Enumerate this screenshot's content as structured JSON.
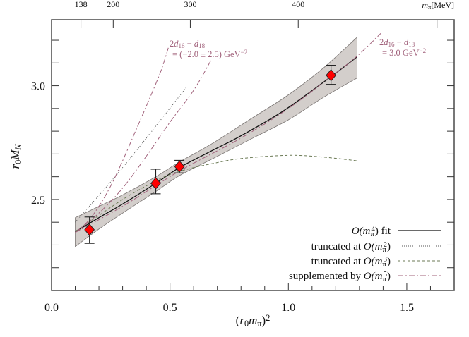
{
  "chart_data": {
    "type": "scatter",
    "xlabel": [
      {
        "t": "("
      },
      {
        "t": "r",
        "i": true
      },
      {
        "t": "0",
        "sub": true
      },
      {
        "t": "m",
        "i": true
      },
      {
        "t": "π",
        "sub": true
      },
      {
        "t": ")"
      },
      {
        "t": "2",
        "sup": true
      }
    ],
    "ylabel": [
      {
        "t": "r",
        "i": true
      },
      {
        "t": "0",
        "sub": true
      },
      {
        "t": "M",
        "i": true
      },
      {
        "t": "N",
        "sub": true,
        "i": true
      }
    ],
    "xlim": [
      0.0,
      1.7
    ],
    "ylim": [
      2.1,
      3.29
    ],
    "x_ticks": [
      {
        "value": 0.0,
        "label": "0.0"
      },
      {
        "value": 0.5,
        "label": "0.5"
      },
      {
        "value": 1.0,
        "label": "1.0"
      },
      {
        "value": 1.5,
        "label": "1.5"
      }
    ],
    "y_ticks": [
      {
        "value": 2.5,
        "label": "2.5"
      },
      {
        "value": 3.0,
        "label": "3.0"
      }
    ],
    "top_axis": {
      "label": [
        {
          "t": "m",
          "i": true
        },
        {
          "t": "π",
          "sub": true
        },
        {
          "t": "[MeV]"
        }
      ],
      "ticks": [
        {
          "value": 138,
          "label": "138"
        },
        {
          "value": 200,
          "label": "200"
        },
        {
          "value": 300,
          "label": "300"
        },
        {
          "value": 400,
          "label": "400"
        },
        {
          "value": 500,
          "label": ""
        }
      ]
    },
    "grid": false,
    "points": [
      {
        "x": 0.16,
        "y": 2.367,
        "err_low": 2.307,
        "err_high": 2.423
      },
      {
        "x": 0.44,
        "y": 2.571,
        "err_low": 2.525,
        "err_high": 2.633
      },
      {
        "x": 0.54,
        "y": 2.645,
        "err_low": 2.617,
        "err_high": 2.672
      },
      {
        "x": 1.18,
        "y": 3.046,
        "err_low": 3.006,
        "err_high": 3.09
      }
    ],
    "marker_color": "#ff0000",
    "band": {
      "color": "#d3cecb",
      "upper": [
        [
          0.1,
          2.42
        ],
        [
          0.2,
          2.47
        ],
        [
          0.3,
          2.52
        ],
        [
          0.44,
          2.6
        ],
        [
          0.54,
          2.665
        ],
        [
          0.68,
          2.747
        ],
        [
          0.85,
          2.86
        ],
        [
          1.0,
          2.96
        ],
        [
          1.15,
          3.08
        ],
        [
          1.29,
          3.213
        ]
      ],
      "lower": [
        [
          0.1,
          2.293
        ],
        [
          0.2,
          2.37
        ],
        [
          0.3,
          2.44
        ],
        [
          0.44,
          2.535
        ],
        [
          0.54,
          2.605
        ],
        [
          0.68,
          2.679
        ],
        [
          0.85,
          2.77
        ],
        [
          1.0,
          2.85
        ],
        [
          1.15,
          2.95
        ],
        [
          1.29,
          3.034
        ]
      ]
    },
    "series": [
      {
        "name": [
          {
            "t": "O(m",
            "i": true
          },
          {
            "t": "π",
            "sub": true
          },
          {
            "t": "4",
            "sup": true
          },
          {
            "t": ")"
          },
          {
            "t": " fit"
          }
        ],
        "style": "solid",
        "color": "#111111",
        "x": [
          0.1,
          0.2,
          0.3,
          0.44,
          0.54,
          0.68,
          0.8,
          0.98,
          1.18,
          1.29
        ],
        "y": [
          2.358,
          2.42,
          2.48,
          2.571,
          2.64,
          2.716,
          2.78,
          2.89,
          3.04,
          3.127
        ]
      },
      {
        "name": [
          {
            "t": "truncated at "
          },
          {
            "t": "O(m",
            "i": true
          },
          {
            "t": "π",
            "sub": true
          },
          {
            "t": "2",
            "sup": true
          },
          {
            "t": ")"
          }
        ],
        "style": "dotted",
        "color": "#555555",
        "x": [
          0.1,
          0.3,
          0.567
        ],
        "y": [
          2.4,
          2.64,
          2.99
        ]
      },
      {
        "name": [
          {
            "t": "truncated at "
          },
          {
            "t": "O(m",
            "i": true
          },
          {
            "t": "π",
            "sub": true
          },
          {
            "t": "3",
            "sup": true
          },
          {
            "t": ")"
          }
        ],
        "style": "dashed",
        "color": "#6b7a55",
        "x": [
          0.1,
          0.2,
          0.3,
          0.4,
          0.5,
          0.6,
          0.68,
          0.8,
          1.0,
          1.15,
          1.29
        ],
        "y": [
          2.36,
          2.43,
          2.5,
          2.56,
          2.61,
          2.64,
          2.658,
          2.68,
          2.694,
          2.686,
          2.67
        ]
      },
      {
        "name": [
          {
            "t": "supplemented by "
          },
          {
            "t": "O(m",
            "i": true
          },
          {
            "t": "π",
            "sub": true
          },
          {
            "t": "5",
            "sup": true
          },
          {
            "t": ")"
          }
        ],
        "style": "dashdot",
        "color": "#a0607a",
        "x": [
          0.1,
          0.3,
          0.54,
          0.8,
          1.0,
          1.18,
          1.29,
          1.39
        ],
        "y": [
          2.355,
          2.47,
          2.625,
          2.77,
          2.9,
          3.04,
          3.13,
          3.23
        ]
      },
      {
        "style": "dashdot",
        "color": "#a0607a",
        "x": [
          0.1,
          0.15,
          0.2,
          0.25,
          0.3,
          0.35,
          0.4,
          0.46,
          0.494
        ],
        "y": [
          2.355,
          2.4,
          2.47,
          2.56,
          2.67,
          2.79,
          2.91,
          3.06,
          3.17
        ]
      },
      {
        "style": "dashdot",
        "color": "#a0607a",
        "x": [
          0.1,
          0.2,
          0.3,
          0.4,
          0.5,
          0.6,
          0.676
        ],
        "y": [
          2.355,
          2.44,
          2.55,
          2.69,
          2.84,
          2.98,
          3.117
        ]
      }
    ],
    "legend_placement": "bottom-right",
    "annotations": [
      {
        "line1": [
          {
            "t": "2"
          },
          {
            "t": "d",
            "i": true
          },
          {
            "t": "16",
            "sub": true
          },
          {
            "t": " − "
          },
          {
            "t": "d",
            "i": true
          },
          {
            "t": "18",
            "sub": true
          }
        ],
        "line2": [
          {
            "t": "= (−2.0 ± 2.5) GeV"
          },
          {
            "t": "−2",
            "sup": true
          }
        ]
      },
      {
        "line1": [
          {
            "t": "2"
          },
          {
            "t": "d",
            "i": true
          },
          {
            "t": "16",
            "sub": true
          },
          {
            "t": " − "
          },
          {
            "t": "d",
            "i": true
          },
          {
            "t": "18",
            "sub": true
          }
        ],
        "line2": [
          {
            "t": "= 3.0 GeV"
          },
          {
            "t": "−2",
            "sup": true
          }
        ]
      }
    ]
  }
}
